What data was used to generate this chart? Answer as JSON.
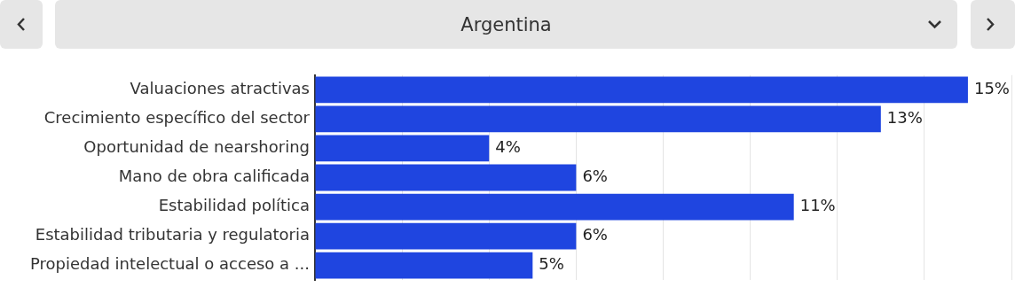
{
  "chart_data": {
    "type": "bar",
    "orientation": "horizontal",
    "title": "Argentina",
    "categories": [
      "Valuaciones atractivas",
      "Crecimiento específico del sector",
      "Oportunidad de nearshoring",
      "Mano de obra calificada",
      "Estabilidad política",
      "Estabilidad tributaria y regulatoria",
      "Propiedad intelectual o acceso a ..."
    ],
    "values": [
      15,
      13,
      4,
      6,
      11,
      6,
      5
    ],
    "value_labels": [
      "15%",
      "13%",
      "4%",
      "6%",
      "11%",
      "6%",
      "5%"
    ],
    "color": "#1f45e0",
    "xlim": [
      0,
      16
    ],
    "xticks": [
      {
        "value": 0,
        "label": null
      },
      {
        "value": 2,
        "label": null
      },
      {
        "value": 4,
        "label": null
      },
      {
        "value": 6,
        "label": null
      },
      {
        "value": 8,
        "label": null
      },
      {
        "value": 10,
        "label": null
      },
      {
        "value": 12,
        "label": null
      },
      {
        "value": 14,
        "label": null
      },
      {
        "value": 16,
        "label": null
      }
    ],
    "grid": "x",
    "legend": false,
    "tick_labels": "y"
  }
}
